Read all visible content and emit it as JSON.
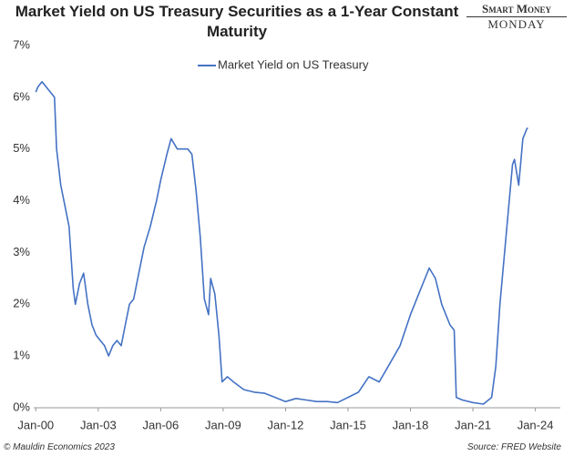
{
  "chart_data": {
    "type": "line",
    "title": "Market Yield on US Treasury Securities as a 1-Year Constant Maturity",
    "logo": {
      "top": "Smart Money",
      "bottom": "Monday"
    },
    "footer_left": "© Mauldin Economics 2023",
    "footer_right": "Source: FRED Website",
    "legend": "top",
    "grid": false,
    "xlim": [
      1999.9,
      2025.2
    ],
    "xticks": [
      {
        "value": 2000,
        "label": "Jan-00"
      },
      {
        "value": 2003,
        "label": "Jan-03"
      },
      {
        "value": 2006,
        "label": "Jan-06"
      },
      {
        "value": 2009,
        "label": "Jan-09"
      },
      {
        "value": 2012,
        "label": "Jan-12"
      },
      {
        "value": 2015,
        "label": "Jan-15"
      },
      {
        "value": 2018,
        "label": "Jan-18"
      },
      {
        "value": 2021,
        "label": "Jan-21"
      },
      {
        "value": 2024,
        "label": "Jan-24"
      }
    ],
    "ylim": [
      0,
      7
    ],
    "yticks": [
      {
        "value": 0,
        "label": "0%"
      },
      {
        "value": 1,
        "label": "1%"
      },
      {
        "value": 2,
        "label": "2%"
      },
      {
        "value": 3,
        "label": "3%"
      },
      {
        "value": 4,
        "label": "4%"
      },
      {
        "value": 5,
        "label": "5%"
      },
      {
        "value": 6,
        "label": "6%"
      },
      {
        "value": 7,
        "label": "7%"
      }
    ],
    "x": [
      2000.0,
      2000.1,
      2000.3,
      2000.5,
      2000.7,
      2000.9,
      2001.0,
      2001.2,
      2001.4,
      2001.6,
      2001.8,
      2001.9,
      2002.1,
      2002.3,
      2002.5,
      2002.7,
      2002.9,
      2003.1,
      2003.3,
      2003.5,
      2003.7,
      2003.9,
      2004.1,
      2004.3,
      2004.5,
      2004.7,
      2004.9,
      2005.2,
      2005.5,
      2005.8,
      2006.0,
      2006.3,
      2006.5,
      2006.8,
      2007.0,
      2007.3,
      2007.5,
      2007.7,
      2007.9,
      2008.1,
      2008.3,
      2008.4,
      2008.6,
      2008.8,
      2008.95,
      2009.2,
      2009.5,
      2010.0,
      2010.5,
      2011.0,
      2011.5,
      2012.0,
      2012.5,
      2013.0,
      2013.5,
      2014.0,
      2014.5,
      2015.0,
      2015.5,
      2016.0,
      2016.5,
      2017.0,
      2017.5,
      2018.0,
      2018.5,
      2018.9,
      2019.2,
      2019.5,
      2019.9,
      2020.1,
      2020.2,
      2020.5,
      2021.0,
      2021.5,
      2021.9,
      2022.1,
      2022.3,
      2022.5,
      2022.7,
      2022.9,
      2023.0,
      2023.2,
      2023.4,
      2023.6,
      2023.65
    ],
    "series": [
      {
        "name": "Market Yield on US Treasury",
        "color": "#4472c4",
        "values": [
          6.1,
          6.2,
          6.3,
          6.2,
          6.1,
          6.0,
          5.0,
          4.3,
          3.9,
          3.5,
          2.3,
          2.0,
          2.4,
          2.6,
          2.0,
          1.6,
          1.4,
          1.3,
          1.2,
          1.0,
          1.2,
          1.3,
          1.2,
          1.6,
          2.0,
          2.1,
          2.5,
          3.1,
          3.5,
          4.0,
          4.4,
          4.9,
          5.2,
          5.0,
          5.0,
          5.0,
          4.9,
          4.2,
          3.3,
          2.1,
          1.8,
          2.5,
          2.2,
          1.4,
          0.5,
          0.6,
          0.5,
          0.35,
          0.3,
          0.28,
          0.2,
          0.12,
          0.18,
          0.15,
          0.12,
          0.12,
          0.1,
          0.2,
          0.3,
          0.6,
          0.5,
          0.85,
          1.2,
          1.8,
          2.3,
          2.7,
          2.5,
          2.0,
          1.6,
          1.5,
          0.2,
          0.15,
          0.1,
          0.07,
          0.2,
          0.8,
          2.0,
          2.9,
          3.8,
          4.7,
          4.8,
          4.3,
          5.2,
          5.4,
          5.4
        ]
      }
    ]
  }
}
